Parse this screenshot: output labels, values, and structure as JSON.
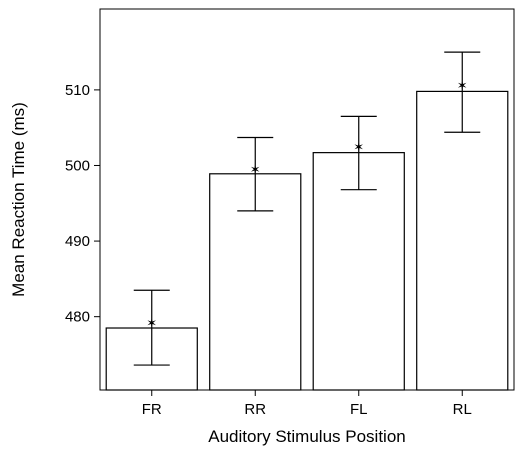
{
  "chart_data": {
    "type": "bar",
    "xlabel": "Auditory Stimulus Position",
    "ylabel": "Mean Reaction Time (ms)",
    "categories": [
      "FR",
      "RR",
      "FL",
      "RL"
    ],
    "values": [
      478.5,
      498.9,
      501.7,
      509.8
    ],
    "means": [
      479.1,
      499.4,
      502.4,
      510.5
    ],
    "error_lower": [
      473.6,
      494.0,
      496.8,
      504.4
    ],
    "error_upper": [
      483.5,
      503.7,
      506.5,
      515.0
    ],
    "ylim": [
      470.3,
      520.7
    ],
    "yticks": [
      480,
      490,
      500,
      510
    ],
    "grid": false,
    "colors": {
      "bar_fill": "#ffffff",
      "stroke": "#000000",
      "marker": "#000000"
    }
  }
}
